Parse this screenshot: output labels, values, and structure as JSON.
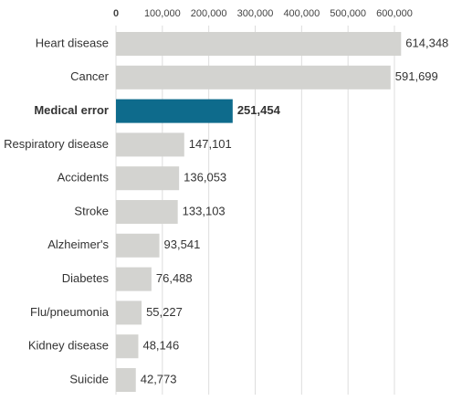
{
  "chart_data": {
    "type": "hbar",
    "categories": [
      "Heart disease",
      "Cancer",
      "Medical error",
      "Respiratory disease",
      "Accidents",
      "Stroke",
      "Alzheimer's",
      "Diabetes",
      "Flu/pneumonia",
      "Kidney disease",
      "Suicide"
    ],
    "values": [
      614348,
      591699,
      251454,
      147101,
      136053,
      133103,
      93541,
      76488,
      55227,
      48146,
      42773
    ],
    "value_labels": [
      "614,348",
      "591,699",
      "251,454",
      "147,101",
      "136,053",
      "133,103",
      "93,541",
      "76,488",
      "55,227",
      "48,146",
      "42,773"
    ],
    "color": "#d3d3d0",
    "colors": [
      "#d3d3d0",
      "#d3d3d0",
      "#0e6b8c",
      "#d3d3d0",
      "#d3d3d0",
      "#d3d3d0",
      "#d3d3d0",
      "#d3d3d0",
      "#d3d3d0",
      "#d3d3d0",
      "#d3d3d0"
    ],
    "xlim": [
      0,
      600000
    ],
    "xticks": [
      0,
      {
        "value": 100000,
        "label": "100,000"
      },
      {
        "value": 200000,
        "label": "200,000"
      },
      {
        "value": 300000,
        "label": "300,000"
      },
      {
        "value": 400000,
        "label": "400,000"
      },
      {
        "value": 500000,
        "label": "500,000"
      },
      {
        "value": 600000,
        "label": "600,000"
      }
    ],
    "grid": true
  }
}
